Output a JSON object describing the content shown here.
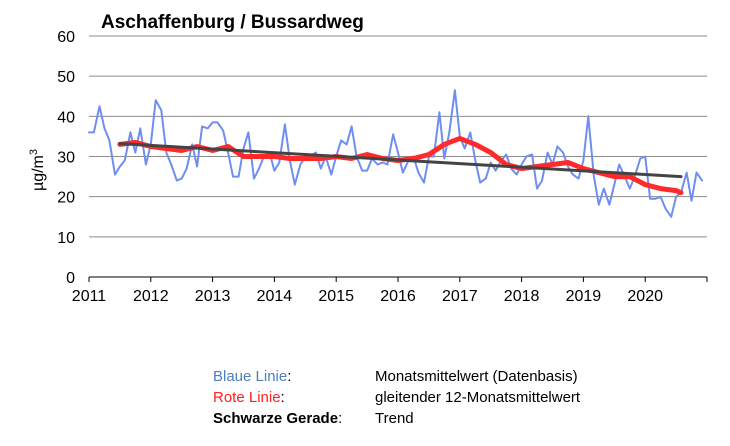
{
  "chart_data": {
    "type": "line",
    "title": "Aschaffenburg / Bussardweg",
    "ylabel": "µg/m³",
    "ylabel_base": "µg/m",
    "ylabel_sup": "3",
    "xlabel": "",
    "xlim": [
      2011,
      2021
    ],
    "ylim": [
      0,
      60
    ],
    "x_ticks": [
      "2011",
      "2012",
      "2013",
      "2014",
      "2015",
      "2016",
      "2017",
      "2018",
      "2019",
      "2020"
    ],
    "y_ticks": [
      "0",
      "10",
      "20",
      "30",
      "40",
      "50",
      "60"
    ],
    "grid": "horizontal",
    "colors": {
      "monthly": "#6e8ef0",
      "rolling": "#ff2a2a",
      "trend": "#444444"
    },
    "series": [
      {
        "key": "monthly",
        "x": [
          2011.0,
          2011.08,
          2011.17,
          2011.25,
          2011.33,
          2011.42,
          2011.5,
          2011.58,
          2011.67,
          2011.75,
          2011.83,
          2011.92,
          2012.0,
          2012.08,
          2012.17,
          2012.25,
          2012.33,
          2012.42,
          2012.5,
          2012.58,
          2012.67,
          2012.75,
          2012.83,
          2012.92,
          2013.0,
          2013.08,
          2013.17,
          2013.25,
          2013.33,
          2013.42,
          2013.5,
          2013.58,
          2013.67,
          2013.75,
          2013.83,
          2013.92,
          2014.0,
          2014.08,
          2014.17,
          2014.25,
          2014.33,
          2014.42,
          2014.5,
          2014.58,
          2014.67,
          2014.75,
          2014.83,
          2014.92,
          2015.0,
          2015.08,
          2015.17,
          2015.25,
          2015.33,
          2015.42,
          2015.5,
          2015.58,
          2015.67,
          2015.75,
          2015.83,
          2015.92,
          2016.0,
          2016.08,
          2016.17,
          2016.25,
          2016.33,
          2016.42,
          2016.5,
          2016.58,
          2016.67,
          2016.75,
          2016.83,
          2016.92,
          2017.0,
          2017.08,
          2017.17,
          2017.25,
          2017.33,
          2017.42,
          2017.5,
          2017.58,
          2017.67,
          2017.75,
          2017.83,
          2017.92,
          2018.0,
          2018.08,
          2018.17,
          2018.25,
          2018.33,
          2018.42,
          2018.5,
          2018.58,
          2018.67,
          2018.75,
          2018.83,
          2018.92,
          2019.0,
          2019.08,
          2019.17,
          2019.25,
          2019.33,
          2019.42,
          2019.5,
          2019.58,
          2019.67,
          2019.75,
          2019.83,
          2019.92,
          2020.0,
          2020.08,
          2020.17,
          2020.25,
          2020.33,
          2020.42,
          2020.5,
          2020.58,
          2020.67,
          2020.75,
          2020.83,
          2020.92
        ],
        "values": [
          36,
          36,
          42.5,
          37,
          34,
          25.5,
          27.5,
          29,
          36,
          31,
          37,
          28,
          33,
          44,
          41.5,
          31,
          28,
          24,
          24.5,
          27,
          33,
          27.5,
          37.5,
          37,
          38.5,
          38.5,
          36.5,
          31,
          25,
          25,
          32,
          36,
          24.5,
          27,
          30,
          31,
          26.5,
          28.5,
          38,
          29,
          23,
          28,
          30,
          30,
          31,
          27,
          30,
          25.5,
          30,
          34,
          33,
          37.5,
          30,
          26.5,
          26.5,
          29.5,
          28,
          28.5,
          28,
          35.5,
          31,
          26,
          29,
          30,
          26,
          23.5,
          30,
          30,
          41,
          29.5,
          36,
          46.5,
          35,
          32,
          36,
          29,
          23.5,
          24.5,
          28.5,
          26.5,
          29,
          30.5,
          27,
          25.5,
          28,
          30,
          30.5,
          22,
          24,
          31,
          28,
          32.5,
          31,
          27.5,
          25.5,
          24.5,
          29,
          40,
          25,
          18,
          22,
          18,
          23,
          28,
          25,
          22,
          25,
          29.5,
          30,
          19.5,
          19.5,
          20,
          17,
          15,
          20,
          21,
          26,
          19,
          26,
          24
        ]
      },
      {
        "key": "rolling",
        "x": [
          2011.5,
          2011.75,
          2012.0,
          2012.25,
          2012.5,
          2012.75,
          2013.0,
          2013.25,
          2013.5,
          2013.75,
          2014.0,
          2014.25,
          2014.5,
          2014.75,
          2015.0,
          2015.25,
          2015.5,
          2015.75,
          2016.0,
          2016.25,
          2016.5,
          2016.75,
          2017.0,
          2017.25,
          2017.5,
          2017.75,
          2018.0,
          2018.25,
          2018.5,
          2018.75,
          2019.0,
          2019.25,
          2019.5,
          2019.75,
          2020.0,
          2020.25,
          2020.5,
          2020.58
        ],
        "values": [
          33,
          33.5,
          32.5,
          32,
          31.5,
          32.5,
          31.5,
          32.5,
          30,
          30,
          30,
          29.5,
          29.5,
          29.5,
          30,
          29.5,
          30.5,
          29.5,
          29,
          29.5,
          30.5,
          33,
          34.5,
          33,
          31,
          28,
          27,
          27.5,
          28,
          28.5,
          27,
          26,
          25,
          25,
          23,
          22,
          21.5,
          21
        ]
      },
      {
        "key": "trend",
        "x": [
          2011.5,
          2020.58
        ],
        "values": [
          33.2,
          25.0
        ]
      }
    ],
    "legend": [
      {
        "key": "Blaue Linie",
        "sep": ":",
        "desc": "Monatsmittelwert (Datenbasis)"
      },
      {
        "key": "Rote Linie",
        "sep": ":",
        "desc": "gleitender 12-Monatsmittelwert"
      },
      {
        "key": "Schwarze Gerade",
        "sep": ":",
        "desc": "Trend"
      }
    ]
  }
}
